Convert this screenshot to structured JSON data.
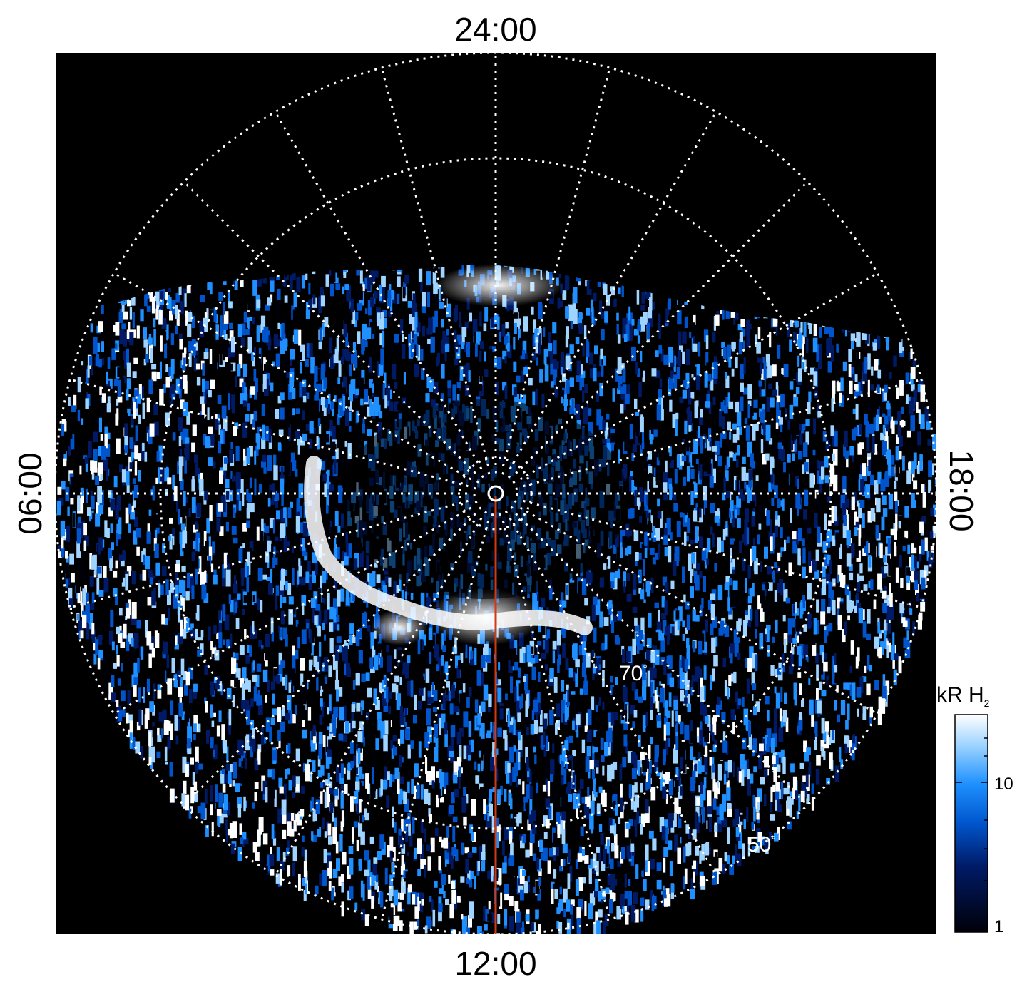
{
  "figure": {
    "local_time_labels": {
      "top": "24:00",
      "bottom": "12:00",
      "left": "06:00",
      "right": "18:00"
    },
    "latitude_labels": {
      "inner": "70",
      "outer": "50",
      "degree_symbol": "°"
    },
    "colorbar": {
      "title_main": "kR H",
      "title_sub": "2",
      "ticks": [
        "10",
        "1"
      ],
      "colors": [
        "#000008",
        "#001a66",
        "#0055cc",
        "#1e90ff",
        "#9ed4ff",
        "#ffffff"
      ]
    },
    "colors": {
      "background": "#000000",
      "grid": "#ffffff",
      "meridian_line": "#d03a14"
    }
  }
}
